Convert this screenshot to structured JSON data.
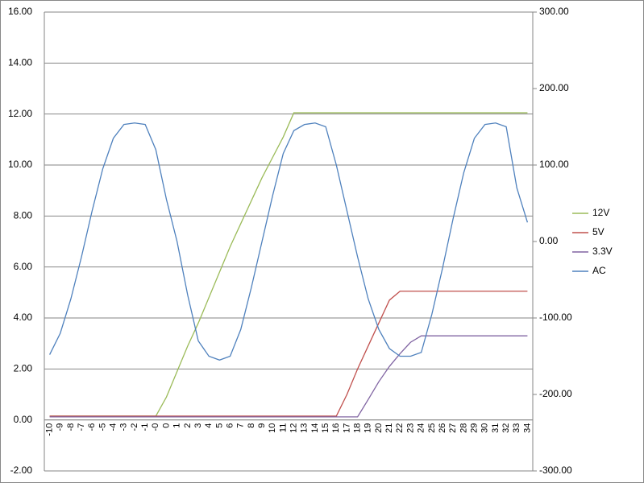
{
  "chart_data": {
    "type": "line",
    "categories": [
      "-10",
      "-9",
      "-8",
      "-7",
      "-6",
      "-5",
      "-4",
      "-3",
      "-2",
      "-1",
      "-0",
      "0",
      "1",
      "2",
      "3",
      "4",
      "5",
      "6",
      "7",
      "8",
      "9",
      "10",
      "11",
      "12",
      "13",
      "14",
      "15",
      "16",
      "17",
      "18",
      "19",
      "20",
      "21",
      "22",
      "23",
      "24",
      "25",
      "26",
      "27",
      "28",
      "29",
      "30",
      "31",
      "32",
      "33",
      "34"
    ],
    "series": [
      {
        "name": "12V",
        "color": "#9bbb59",
        "values": [
          0.15,
          0.15,
          0.15,
          0.15,
          0.15,
          0.15,
          0.15,
          0.15,
          0.15,
          0.15,
          0.15,
          0.9,
          1.9,
          2.9,
          3.8,
          4.8,
          5.8,
          6.8,
          7.7,
          8.6,
          9.5,
          10.3,
          11.1,
          12.05,
          12.05,
          12.05,
          12.05,
          12.05,
          12.05,
          12.05,
          12.05,
          12.05,
          12.05,
          12.05,
          12.05,
          12.05,
          12.05,
          12.05,
          12.05,
          12.05,
          12.05,
          12.05,
          12.05,
          12.05,
          12.05,
          12.05
        ]
      },
      {
        "name": "5V",
        "color": "#c0504d",
        "values": [
          0.15,
          0.15,
          0.15,
          0.15,
          0.15,
          0.15,
          0.15,
          0.15,
          0.15,
          0.15,
          0.15,
          0.15,
          0.15,
          0.15,
          0.15,
          0.15,
          0.15,
          0.15,
          0.15,
          0.15,
          0.15,
          0.15,
          0.15,
          0.15,
          0.15,
          0.15,
          0.15,
          0.15,
          1.0,
          2.0,
          2.9,
          3.8,
          4.7,
          5.05,
          5.05,
          5.05,
          5.05,
          5.05,
          5.05,
          5.05,
          5.05,
          5.05,
          5.05,
          5.05,
          5.05,
          5.05
        ]
      },
      {
        "name": "3.3V",
        "color": "#8064a2",
        "values": [
          0.12,
          0.12,
          0.12,
          0.12,
          0.12,
          0.12,
          0.12,
          0.12,
          0.12,
          0.12,
          0.12,
          0.12,
          0.12,
          0.12,
          0.12,
          0.12,
          0.12,
          0.12,
          0.12,
          0.12,
          0.12,
          0.12,
          0.12,
          0.12,
          0.12,
          0.12,
          0.12,
          0.12,
          0.12,
          0.12,
          0.8,
          1.5,
          2.1,
          2.6,
          3.05,
          3.3,
          3.3,
          3.3,
          3.3,
          3.3,
          3.3,
          3.3,
          3.3,
          3.3,
          3.3,
          3.3
        ]
      },
      {
        "name": "AC",
        "color": "#4f81bd",
        "axis": "y2",
        "values": [
          -148,
          -120,
          -75,
          -20,
          40,
          95,
          135,
          153,
          155,
          153,
          120,
          55,
          0,
          -70,
          -130,
          -150,
          -155,
          -150,
          -115,
          -60,
          0,
          60,
          115,
          145,
          153,
          155,
          150,
          100,
          40,
          -20,
          -75,
          -115,
          -140,
          -150,
          -150,
          -145,
          -95,
          -35,
          30,
          90,
          135,
          153,
          155,
          150,
          70,
          25
        ]
      }
    ],
    "ylim": [
      -2,
      16
    ],
    "yticks": [
      {
        "value": -2,
        "label": "-2.00"
      },
      {
        "value": 0,
        "label": "0.00"
      },
      {
        "value": 2,
        "label": "2.00"
      },
      {
        "value": 4,
        "label": "4.00"
      },
      {
        "value": 6,
        "label": "6.00"
      },
      {
        "value": 8,
        "label": "8.00"
      },
      {
        "value": 10,
        "label": "10.00"
      },
      {
        "value": 12,
        "label": "12.00"
      },
      {
        "value": 14,
        "label": "14.00"
      },
      {
        "value": 16,
        "label": "16.00"
      }
    ],
    "y2lim": [
      -300,
      300
    ],
    "y2ticks": [
      {
        "value": -300,
        "label": "-300.00"
      },
      {
        "value": -200,
        "label": "-200.00"
      },
      {
        "value": -100,
        "label": "-100.00"
      },
      {
        "value": 0,
        "label": "0.00"
      },
      {
        "value": 100,
        "label": "100.00"
      },
      {
        "value": 200,
        "label": "200.00"
      },
      {
        "value": 300,
        "label": "300.00"
      }
    ],
    "grid": true,
    "legend": "right"
  }
}
